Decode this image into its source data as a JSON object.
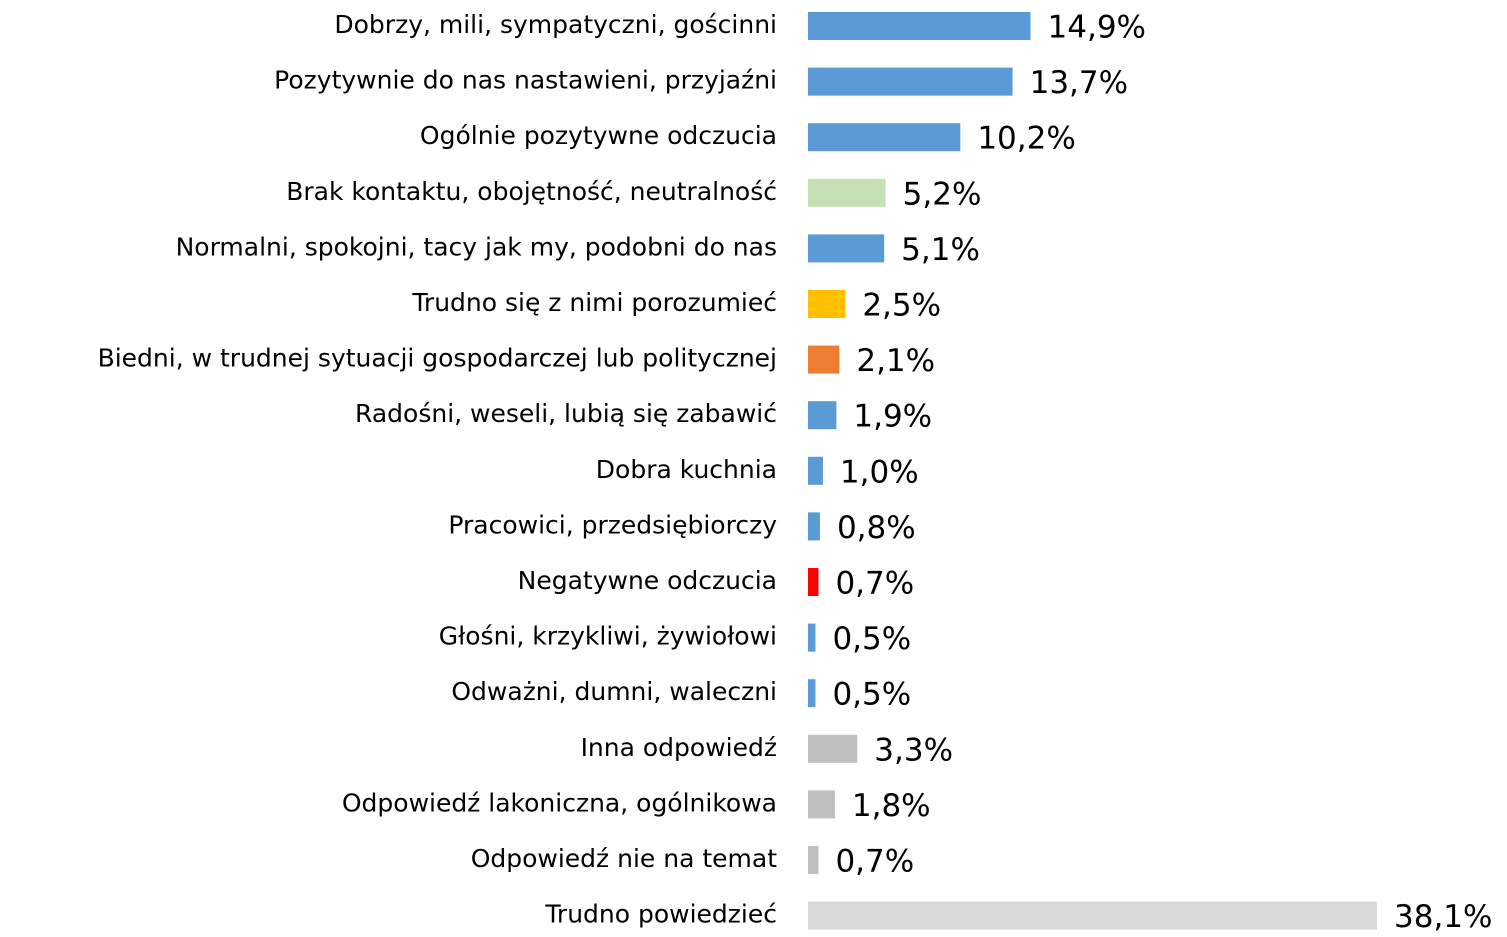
{
  "chart_data": {
    "type": "bar",
    "orientation": "horizontal",
    "categories": [
      "Dobrzy, mili, sympatyczni, gościnni",
      "Pozytywnie do nas nastawieni, przyjaźni",
      "Ogólnie pozytywne odczucia",
      "Brak kontaktu, obojętność, neutralność",
      "Normalni, spokojni, tacy jak my, podobni do nas",
      "Trudno się z nimi porozumieć",
      "Biedni, w trudnej sytuacji gospodarczej lub politycznej",
      "Radośni, weseli, lubią się zabawić",
      "Dobra kuchnia",
      "Pracowici, przedsiębiorczy",
      "Negatywne odczucia",
      "Głośni, krzykliwi, żywiołowi",
      "Odważni, dumni, waleczni",
      "Inna odpowiedź",
      "Odpowiedź lakoniczna, ogólnikowa",
      "Odpowiedź nie na temat",
      "Trudno powiedzieć"
    ],
    "values": [
      14.9,
      13.7,
      10.2,
      5.2,
      5.1,
      2.5,
      2.1,
      1.9,
      1.0,
      0.8,
      0.7,
      0.5,
      0.5,
      3.3,
      1.8,
      0.7,
      38.1
    ],
    "value_labels": [
      "14,9%",
      "13,7%",
      "10,2%",
      "5,2%",
      "5,1%",
      "2,5%",
      "2,1%",
      "1,9%",
      "1,0%",
      "0,8%",
      "0,7%",
      "0,5%",
      "0,5%",
      "3,3%",
      "1,8%",
      "0,7%",
      "38,1%"
    ],
    "colors": [
      "#5b9bd5",
      "#5b9bd5",
      "#5b9bd5",
      "#c5e0b4",
      "#5b9bd5",
      "#ffc000",
      "#ed7d31",
      "#5b9bd5",
      "#5b9bd5",
      "#5b9bd5",
      "#ff0000",
      "#5b9bd5",
      "#5b9bd5",
      "#bfbfbf",
      "#bfbfbf",
      "#bfbfbf",
      "#d9d9d9"
    ]
  }
}
